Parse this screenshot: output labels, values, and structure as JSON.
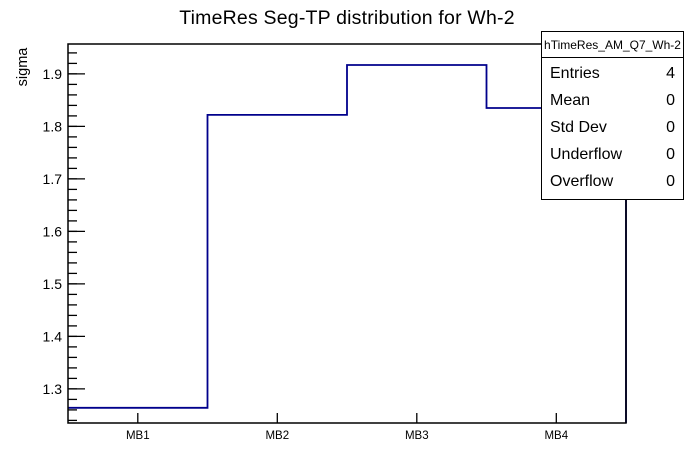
{
  "chart_data": {
    "type": "line",
    "style": "step-histogram",
    "title": "TimeRes Seg-TP distribution for Wh-2",
    "xlabel": "",
    "ylabel": "sigma",
    "categories": [
      "MB1",
      "MB2",
      "MB3",
      "MB4"
    ],
    "values": [
      1.264,
      1.822,
      1.917,
      1.835
    ],
    "ylim": [
      1.235,
      1.957
    ],
    "y_major_ticks": [
      1.3,
      1.4,
      1.5,
      1.6,
      1.7,
      1.8,
      1.9
    ],
    "y_minor_tick_step": 0.02,
    "line_color": "#00008c",
    "frame_color": "#000000",
    "grid": false,
    "legend": false
  },
  "stats_box": {
    "title": "hTimeRes_AM_Q7_Wh-2",
    "rows": [
      {
        "label": "Entries",
        "value": "4"
      },
      {
        "label": "Mean",
        "value": "0"
      },
      {
        "label": "Std Dev",
        "value": "0"
      },
      {
        "label": "Underflow",
        "value": "0"
      },
      {
        "label": "Overflow",
        "value": "0"
      }
    ]
  }
}
